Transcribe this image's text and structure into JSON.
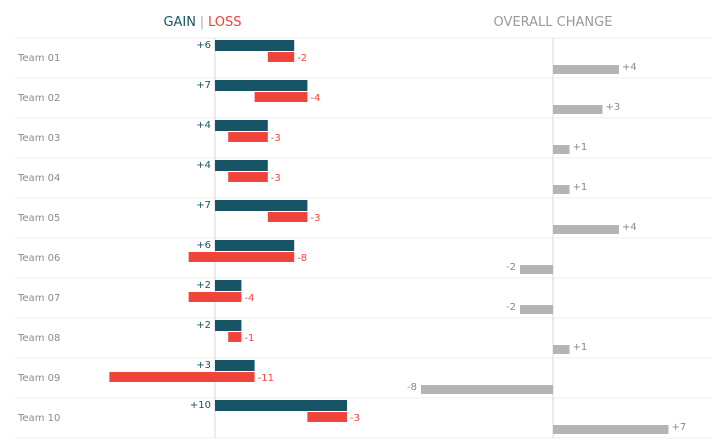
{
  "chart_data": [
    {
      "type": "bar",
      "title_parts": {
        "gain": "GAIN",
        "separator": "|",
        "loss": "LOSS"
      },
      "categories": [
        "Team 01",
        "Team 02",
        "Team 03",
        "Team 04",
        "Team 05",
        "Team 06",
        "Team 07",
        "Team 08",
        "Team 09",
        "Team 10"
      ],
      "series": [
        {
          "name": "GAIN",
          "values": [
            6,
            7,
            4,
            4,
            7,
            6,
            2,
            2,
            3,
            10
          ],
          "labels": [
            "+6",
            "+7",
            "+4",
            "+4",
            "+7",
            "+6",
            "+2",
            "+2",
            "+3",
            "+10"
          ]
        },
        {
          "name": "LOSS",
          "values": [
            -2,
            -4,
            -3,
            -3,
            -3,
            -8,
            -4,
            -1,
            -11,
            -3
          ],
          "labels": [
            "-2",
            "-4",
            "-3",
            "-3",
            "-3",
            "-8",
            "-4",
            "-1",
            "-11",
            "-3"
          ]
        }
      ],
      "grid": "horizontal"
    },
    {
      "type": "bar",
      "title": "OVERALL CHANGE",
      "categories": [
        "Team 01",
        "Team 02",
        "Team 03",
        "Team 04",
        "Team 05",
        "Team 06",
        "Team 07",
        "Team 08",
        "Team 09",
        "Team 10"
      ],
      "values": [
        4,
        3,
        1,
        1,
        4,
        -2,
        -2,
        1,
        -8,
        7
      ],
      "labels": [
        "+4",
        "+3",
        "+1",
        "+1",
        "+4",
        "-2",
        "-2",
        "+1",
        "-8",
        "+7"
      ]
    }
  ],
  "colors": {
    "gain": "#175466",
    "loss": "#f0433a",
    "overall": "#b4b4b4",
    "text": "#8a8a8a"
  }
}
